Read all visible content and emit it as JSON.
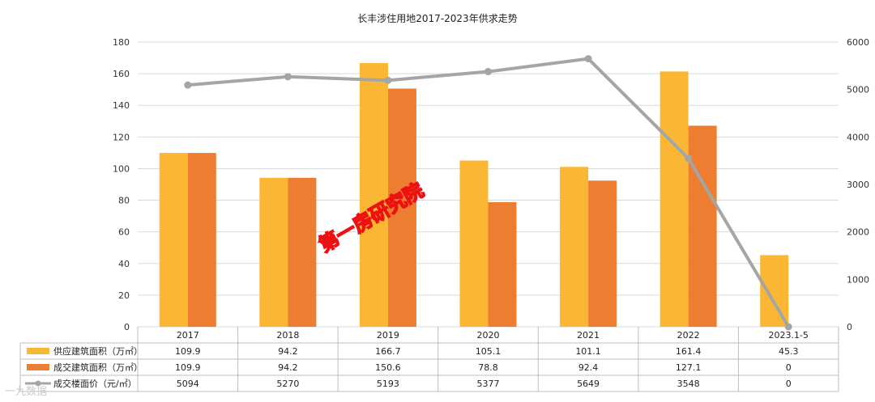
{
  "chart_data": {
    "type": "bar",
    "title": "长丰涉住用地2017-2023年供求走势",
    "categories": [
      "2017",
      "2018",
      "2019",
      "2020",
      "2021",
      "2022",
      "2023.1-5"
    ],
    "series": [
      {
        "name": "供应建筑面积（万㎡）",
        "type": "bar",
        "axis": "left",
        "color": "#FBB733",
        "values": [
          109.9,
          94.2,
          166.7,
          105.1,
          101.1,
          161.4,
          45.3
        ]
      },
      {
        "name": "成交建筑面积（万㎡）",
        "type": "bar",
        "axis": "left",
        "color": "#ED7D31",
        "values": [
          109.9,
          94.2,
          150.6,
          78.8,
          92.4,
          127.1,
          0
        ]
      },
      {
        "name": "成交楼面价（元/㎡）",
        "type": "line",
        "axis": "right",
        "color": "#A5A5A5",
        "values": [
          5094,
          5270,
          5193,
          5377,
          5649,
          3548,
          0
        ]
      }
    ],
    "y_left": {
      "min": 0,
      "max": 180,
      "step": 20,
      "ticks": [
        "0",
        "20",
        "40",
        "60",
        "80",
        "100",
        "120",
        "140",
        "160",
        "180"
      ]
    },
    "y_right": {
      "min": 0,
      "max": 6000,
      "step": 1000,
      "ticks": [
        "0",
        "1000",
        "2000",
        "3000",
        "4000",
        "5000",
        "6000"
      ]
    },
    "table": {
      "rows": [
        [
          "109.9",
          "94.2",
          "166.7",
          "105.1",
          "101.1",
          "161.4",
          "45.3"
        ],
        [
          "109.9",
          "94.2",
          "150.6",
          "78.8",
          "92.4",
          "127.1",
          "0"
        ],
        [
          "5094",
          "5270",
          "5193",
          "5377",
          "5649",
          "3548",
          "0"
        ]
      ]
    },
    "grid": true,
    "legend": "data-table-left"
  },
  "watermark": "第一房研究院",
  "corner_watermark": "一九数据"
}
